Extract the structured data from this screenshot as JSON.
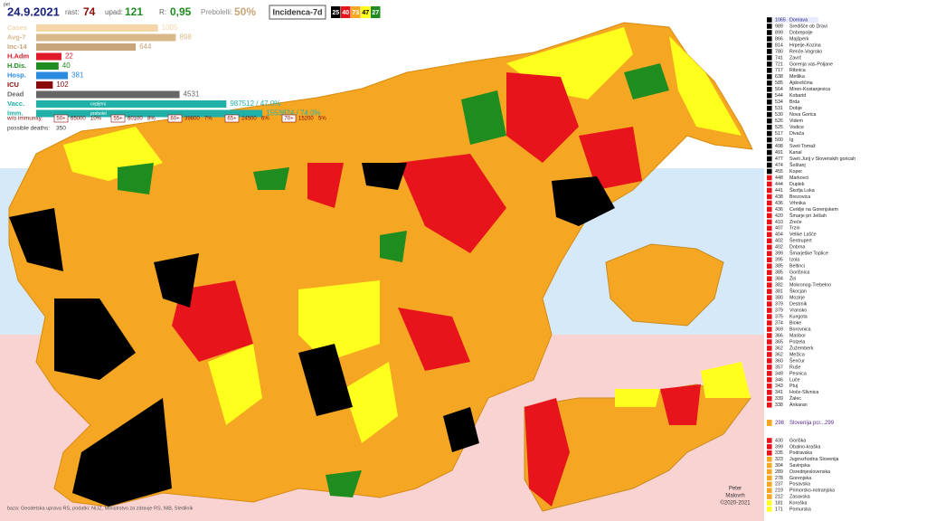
{
  "header": {
    "weekday": "pet",
    "date": "24.9.2021",
    "growth_label": "rast:",
    "growth": 74,
    "decline_label": "upad:",
    "decline": 121,
    "r_label": "R:",
    "r": "0,95",
    "recovered_label": "Prebolelli:",
    "recovered": "50%",
    "incidence_title": "Incidenca-7d",
    "category_counts": [
      {
        "count": 25,
        "color": "#000000",
        "text": "#ffffff"
      },
      {
        "count": 40,
        "color": "#e8141b",
        "text": "#ffffff"
      },
      {
        "count": 73,
        "color": "#f5a623",
        "text": "#ffffff"
      },
      {
        "count": 47,
        "color": "#ffff1e",
        "text": "#000000"
      },
      {
        "count": 27,
        "color": "#1e8c1e",
        "text": "#ffffff"
      }
    ]
  },
  "stats": [
    {
      "label": "Cases",
      "value": 1005,
      "color": "#f5d6a8"
    },
    {
      "label": "Avg-7",
      "value": 898,
      "color": "#d9b98a"
    },
    {
      "label": "Inc-14",
      "value": 644,
      "color": "#c9a57a"
    },
    {
      "label": "H.Adm",
      "value": 22,
      "color": "#e01a2a"
    },
    {
      "label": "H.Dis.",
      "value": 40,
      "color": "#1e8c1e"
    },
    {
      "label": "Hosp.",
      "value": 381,
      "color": "#2a8ae0"
    },
    {
      "label": "ICU",
      "value": 102,
      "color": "#8b0a0a"
    },
    {
      "label": "Dead",
      "value": 4531,
      "color": "#666666"
    },
    {
      "label": "Vacc.",
      "value": 987512,
      "value_label": "987512 / 47,0%",
      "inner": "cepljeni",
      "color": "#20b0a8"
    },
    {
      "label": "Imm.",
      "value": 1553824,
      "value_label": "1553824 / 74,0%",
      "inner": "prebolel",
      "color": "#20b0a8"
    }
  ],
  "immunity": {
    "label": "w/o immunity:",
    "groups": [
      {
        "age": "50+",
        "count": 65000,
        "pct": "10%"
      },
      {
        "age": "55+",
        "count": 60100,
        "pct": "8%"
      },
      {
        "age": "60+",
        "count": 39800,
        "pct": "7%"
      },
      {
        "age": "65+",
        "count": 24500,
        "pct": "6%"
      },
      {
        "age": "70+",
        "count": 15200,
        "pct": "5%"
      }
    ]
  },
  "possible_deaths": {
    "label": "possible deaths:",
    "value": 350
  },
  "municipalities": [
    {
      "value": 1065,
      "name": "Dornava",
      "color": "#000000"
    },
    {
      "value": 989,
      "name": "Središče ob Dravi",
      "color": "#000000"
    },
    {
      "value": 899,
      "name": "Dobrepolje",
      "color": "#000000"
    },
    {
      "value": 866,
      "name": "Majšperk",
      "color": "#000000"
    },
    {
      "value": 814,
      "name": "Hrpelje-Kozina",
      "color": "#000000"
    },
    {
      "value": 780,
      "name": "Renče-Vogrsko",
      "color": "#000000"
    },
    {
      "value": 741,
      "name": "Zavrč",
      "color": "#000000"
    },
    {
      "value": 721,
      "name": "Gorenja vas-Poljane",
      "color": "#000000"
    },
    {
      "value": 717,
      "name": "Ribnica",
      "color": "#000000"
    },
    {
      "value": 638,
      "name": "Metlika",
      "color": "#000000"
    },
    {
      "value": 585,
      "name": "Ajdovščina",
      "color": "#000000"
    },
    {
      "value": 564,
      "name": "Miren-Kostanjevica",
      "color": "#000000"
    },
    {
      "value": 544,
      "name": "Kobarid",
      "color": "#000000"
    },
    {
      "value": 534,
      "name": "Brda",
      "color": "#000000"
    },
    {
      "value": 531,
      "name": "Dobje",
      "color": "#000000"
    },
    {
      "value": 530,
      "name": "Nova Gorica",
      "color": "#000000"
    },
    {
      "value": 526,
      "name": "Videm",
      "color": "#000000"
    },
    {
      "value": 525,
      "name": "Vodice",
      "color": "#000000"
    },
    {
      "value": 517,
      "name": "Divača",
      "color": "#000000"
    },
    {
      "value": 500,
      "name": "Ig",
      "color": "#000000"
    },
    {
      "value": 498,
      "name": "Sveti Tomaž",
      "color": "#000000"
    },
    {
      "value": 491,
      "name": "Kanal",
      "color": "#000000"
    },
    {
      "value": 477,
      "name": "Sveti Jurij v Slovenskih goricah",
      "color": "#000000"
    },
    {
      "value": 474,
      "name": "Šoštanj",
      "color": "#000000"
    },
    {
      "value": 455,
      "name": "Koper",
      "color": "#000000"
    },
    {
      "value": 448,
      "name": "Markovci",
      "color": "#e8141b"
    },
    {
      "value": 444,
      "name": "Duplek",
      "color": "#e8141b"
    },
    {
      "value": 441,
      "name": "Škofja Loka",
      "color": "#e8141b"
    },
    {
      "value": 438,
      "name": "Brezovica",
      "color": "#e8141b"
    },
    {
      "value": 436,
      "name": "Vrhnika",
      "color": "#e8141b"
    },
    {
      "value": 436,
      "name": "Cerklje na Gorenjskem",
      "color": "#e8141b"
    },
    {
      "value": 420,
      "name": "Šmarje pri Jelšah",
      "color": "#e8141b"
    },
    {
      "value": 410,
      "name": "Zreče",
      "color": "#e8141b"
    },
    {
      "value": 407,
      "name": "Trzin",
      "color": "#e8141b"
    },
    {
      "value": 404,
      "name": "Velike Lašče",
      "color": "#e8141b"
    },
    {
      "value": 402,
      "name": "Šentrupert",
      "color": "#e8141b"
    },
    {
      "value": 402,
      "name": "Dobrna",
      "color": "#e8141b"
    },
    {
      "value": 399,
      "name": "Šmarješke Toplice",
      "color": "#e8141b"
    },
    {
      "value": 395,
      "name": "Izola",
      "color": "#e8141b"
    },
    {
      "value": 385,
      "name": "Beltinci",
      "color": "#e8141b"
    },
    {
      "value": 385,
      "name": "Gorišnica",
      "color": "#e8141b"
    },
    {
      "value": 384,
      "name": "Žiri",
      "color": "#e8141b"
    },
    {
      "value": 382,
      "name": "Mokronog-Trebelno",
      "color": "#e8141b"
    },
    {
      "value": 381,
      "name": "Škocjan",
      "color": "#e8141b"
    },
    {
      "value": 380,
      "name": "Mozirje",
      "color": "#e8141b"
    },
    {
      "value": 379,
      "name": "Destrnik",
      "color": "#e8141b"
    },
    {
      "value": 379,
      "name": "Vransko",
      "color": "#e8141b"
    },
    {
      "value": 375,
      "name": "Kungota",
      "color": "#e8141b"
    },
    {
      "value": 374,
      "name": "Bloke",
      "color": "#e8141b"
    },
    {
      "value": 369,
      "name": "Borovnica",
      "color": "#e8141b"
    },
    {
      "value": 366,
      "name": "Maribor",
      "color": "#e8141b"
    },
    {
      "value": 365,
      "name": "Polzela",
      "color": "#e8141b"
    },
    {
      "value": 362,
      "name": "Žužemberk",
      "color": "#e8141b"
    },
    {
      "value": 362,
      "name": "Mežica",
      "color": "#e8141b"
    },
    {
      "value": 360,
      "name": "Šenčur",
      "color": "#e8141b"
    },
    {
      "value": 357,
      "name": "Ruše",
      "color": "#e8141b"
    },
    {
      "value": 349,
      "name": "Pesnica",
      "color": "#e8141b"
    },
    {
      "value": 346,
      "name": "Luče",
      "color": "#e8141b"
    },
    {
      "value": 343,
      "name": "Ptuj",
      "color": "#e8141b"
    },
    {
      "value": 341,
      "name": "Hoče-Slivnica",
      "color": "#e8141b"
    },
    {
      "value": 339,
      "name": "Žalec",
      "color": "#e8141b"
    },
    {
      "value": 338,
      "name": "Ankaran",
      "color": "#e8141b"
    }
  ],
  "national": {
    "value": 298,
    "name": "Slovenija pcr...299",
    "color": "#f5a623"
  },
  "regions": [
    {
      "value": 430,
      "name": "Goriška",
      "color": "#e8141b"
    },
    {
      "value": 399,
      "name": "Obalno-kraška",
      "color": "#e8141b"
    },
    {
      "value": 335,
      "name": "Podravska",
      "color": "#e8141b"
    },
    {
      "value": 323,
      "name": "Jugovzhodna Slovenija",
      "color": "#f5a623"
    },
    {
      "value": 304,
      "name": "Savinjska",
      "color": "#f5a623"
    },
    {
      "value": 289,
      "name": "Osrednjeslovenska",
      "color": "#f5a623"
    },
    {
      "value": 278,
      "name": "Gorenjska",
      "color": "#f5a623"
    },
    {
      "value": 237,
      "name": "Posavska",
      "color": "#f5a623"
    },
    {
      "value": 219,
      "name": "Primorsko-notranjska",
      "color": "#f5a623"
    },
    {
      "value": 212,
      "name": "Zasavska",
      "color": "#f5a623"
    },
    {
      "value": 181,
      "name": "Koroška",
      "color": "#ffff1e"
    },
    {
      "value": 171,
      "name": "Pomurska",
      "color": "#ffff1e"
    }
  ],
  "footer": {
    "sources": "baza: Geodetska uprava RS, podatki: NIJZ, Ministrstvo za zdravje RS, NIB, Sledilnik",
    "author_1": "Peter",
    "author_2": "Malovrh",
    "copyright": "©2020-2021"
  }
}
